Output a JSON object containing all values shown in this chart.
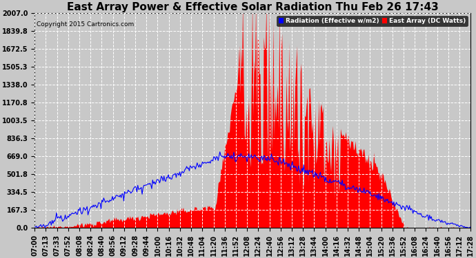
{
  "title": "East Array Power & Effective Solar Radiation Thu Feb 26 17:43",
  "copyright": "Copyright 2015 Cartronics.com",
  "legend_radiation": "Radiation (Effective w/m2)",
  "legend_array": "East Array (DC Watts)",
  "y_ticks": [
    0.0,
    167.3,
    334.5,
    501.8,
    669.0,
    836.3,
    1003.5,
    1170.8,
    1338.0,
    1505.3,
    1672.5,
    1839.8,
    2007.0
  ],
  "y_max": 2007.0,
  "background_color": "#c8c8c8",
  "plot_bg_color": "#c8c8c8",
  "red_fill_color": "#ff0000",
  "blue_line_color": "#0000ff",
  "grid_color": "#ffffff",
  "title_fontsize": 11,
  "tick_label_fontsize": 7,
  "x_tick_labels": [
    "07:00",
    "07:13",
    "07:33",
    "07:52",
    "08:08",
    "08:24",
    "08:40",
    "08:56",
    "09:12",
    "09:28",
    "09:44",
    "10:00",
    "10:16",
    "10:32",
    "10:48",
    "11:04",
    "11:20",
    "11:36",
    "11:52",
    "12:08",
    "12:24",
    "12:40",
    "12:56",
    "13:12",
    "13:28",
    "13:44",
    "14:00",
    "14:16",
    "14:32",
    "14:48",
    "15:04",
    "15:20",
    "15:36",
    "15:52",
    "16:08",
    "16:24",
    "16:40",
    "16:56",
    "17:12",
    "17:28"
  ]
}
